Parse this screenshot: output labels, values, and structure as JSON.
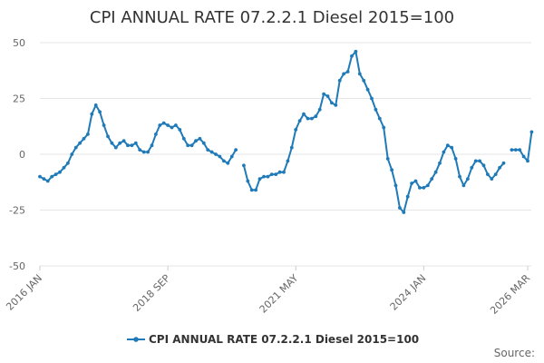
{
  "chart_data": {
    "type": "line",
    "title": "CPI ANNUAL RATE 07.2.2.1 Diesel 2015=100",
    "ylim": [
      -50,
      50
    ],
    "y_ticks": [
      50,
      25,
      0,
      -25,
      -50
    ],
    "y_tick_labels": [
      "50",
      "25",
      "0",
      "-25",
      "-50"
    ],
    "x_ticks": [
      {
        "label": "2016 JAN",
        "month": "2016-01"
      },
      {
        "label": "2018 SEP",
        "month": "2018-09"
      },
      {
        "label": "2021 MAY",
        "month": "2021-05"
      },
      {
        "label": "2024 JAN",
        "month": "2024-01"
      },
      {
        "label": "2026 MAR",
        "month": "2026-03"
      }
    ],
    "xlim": [
      "2016-01",
      "2026-03"
    ],
    "grid": "horizontal",
    "legend_position": "bottom",
    "source_label": "Source:",
    "series": [
      {
        "name": "CPI ANNUAL RATE 07.2.2.1 Diesel 2015=100",
        "color": "#1f7ab8",
        "points": [
          [
            "2016-01",
            -10
          ],
          [
            "2016-02",
            -11
          ],
          [
            "2016-03",
            -12
          ],
          [
            "2016-04",
            -10
          ],
          [
            "2016-05",
            -9
          ],
          [
            "2016-06",
            -8
          ],
          [
            "2016-07",
            -6
          ],
          [
            "2016-08",
            -4
          ],
          [
            "2016-09",
            0
          ],
          [
            "2016-10",
            3
          ],
          [
            "2016-11",
            5
          ],
          [
            "2016-12",
            7
          ],
          [
            "2017-01",
            9
          ],
          [
            "2017-02",
            18
          ],
          [
            "2017-03",
            22
          ],
          [
            "2017-04",
            19
          ],
          [
            "2017-05",
            13
          ],
          [
            "2017-06",
            8
          ],
          [
            "2017-07",
            5
          ],
          [
            "2017-08",
            3
          ],
          [
            "2017-09",
            5
          ],
          [
            "2017-10",
            6
          ],
          [
            "2017-11",
            4
          ],
          [
            "2017-12",
            4
          ],
          [
            "2018-01",
            5
          ],
          [
            "2018-02",
            2
          ],
          [
            "2018-03",
            1
          ],
          [
            "2018-04",
            1
          ],
          [
            "2018-05",
            4
          ],
          [
            "2018-06",
            9
          ],
          [
            "2018-07",
            13
          ],
          [
            "2018-08",
            14
          ],
          [
            "2018-09",
            13
          ],
          [
            "2018-10",
            12
          ],
          [
            "2018-11",
            13
          ],
          [
            "2018-12",
            11
          ],
          [
            "2019-01",
            7
          ],
          [
            "2019-02",
            4
          ],
          [
            "2019-03",
            4
          ],
          [
            "2019-04",
            6
          ],
          [
            "2019-05",
            7
          ],
          [
            "2019-06",
            5
          ],
          [
            "2019-07",
            2
          ],
          [
            "2019-08",
            1
          ],
          [
            "2019-09",
            0
          ],
          [
            "2019-10",
            -1
          ],
          [
            "2019-11",
            -3
          ],
          [
            "2019-12",
            -4
          ],
          [
            "2020-01",
            -1
          ],
          [
            "2020-02",
            2
          ],
          null,
          [
            "2020-04",
            -5
          ],
          [
            "2020-05",
            -12
          ],
          [
            "2020-06",
            -16
          ],
          [
            "2020-07",
            -16
          ],
          [
            "2020-08",
            -11
          ],
          [
            "2020-09",
            -10
          ],
          [
            "2020-10",
            -10
          ],
          [
            "2020-11",
            -9
          ],
          [
            "2020-12",
            -9
          ],
          [
            "2021-01",
            -8
          ],
          [
            "2021-02",
            -8
          ],
          [
            "2021-03",
            -3
          ],
          [
            "2021-04",
            3
          ],
          [
            "2021-05",
            11
          ],
          [
            "2021-06",
            15
          ],
          [
            "2021-07",
            18
          ],
          [
            "2021-08",
            16
          ],
          [
            "2021-09",
            16
          ],
          [
            "2021-10",
            17
          ],
          [
            "2021-11",
            20
          ],
          [
            "2021-12",
            27
          ],
          [
            "2022-01",
            26
          ],
          [
            "2022-02",
            23
          ],
          [
            "2022-03",
            22
          ],
          [
            "2022-04",
            33
          ],
          [
            "2022-05",
            36
          ],
          [
            "2022-06",
            37
          ],
          [
            "2022-07",
            44
          ],
          [
            "2022-08",
            46
          ],
          [
            "2022-09",
            36
          ],
          [
            "2022-10",
            33
          ],
          [
            "2022-11",
            29
          ],
          [
            "2022-12",
            25
          ],
          [
            "2023-01",
            20
          ],
          [
            "2023-02",
            16
          ],
          [
            "2023-03",
            12
          ],
          [
            "2023-04",
            -2
          ],
          [
            "2023-05",
            -7
          ],
          [
            "2023-06",
            -14
          ],
          [
            "2023-07",
            -24
          ],
          [
            "2023-08",
            -26
          ],
          [
            "2023-09",
            -19
          ],
          [
            "2023-10",
            -13
          ],
          [
            "2023-11",
            -12
          ],
          [
            "2023-12",
            -15
          ],
          [
            "2024-01",
            -15
          ],
          [
            "2024-02",
            -14
          ],
          [
            "2024-03",
            -11
          ],
          [
            "2024-04",
            -8
          ],
          [
            "2024-05",
            -4
          ],
          [
            "2024-06",
            1
          ],
          [
            "2024-07",
            4
          ],
          [
            "2024-08",
            3
          ],
          [
            "2024-09",
            -2
          ],
          [
            "2024-10",
            -10
          ],
          [
            "2024-11",
            -14
          ],
          [
            "2024-12",
            -11
          ],
          [
            "2025-01",
            -6
          ],
          [
            "2025-02",
            -3
          ],
          [
            "2025-03",
            -3
          ],
          [
            "2025-04",
            -5
          ],
          [
            "2025-05",
            -9
          ],
          [
            "2025-06",
            -11
          ],
          [
            "2025-07",
            -9
          ],
          [
            "2025-08",
            -6
          ],
          [
            "2025-09",
            -4
          ],
          null,
          [
            "2025-11",
            2
          ],
          [
            "2025-12",
            2
          ],
          [
            "2026-01",
            2
          ],
          [
            "2026-02",
            -1
          ],
          [
            "2026-03",
            -3
          ],
          [
            "2026-04",
            10
          ]
        ]
      }
    ]
  }
}
